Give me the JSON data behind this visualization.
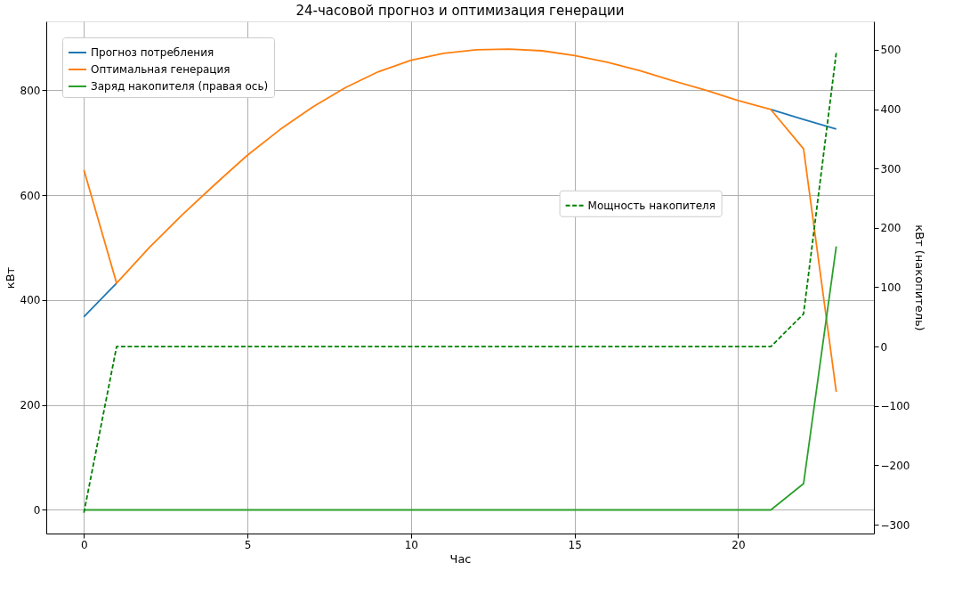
{
  "chart_data": {
    "type": "line",
    "title": "24-часовой прогноз и оптимизация генерации",
    "xlabel": "Час",
    "ylabel": "кВт",
    "y2label": "кВт (накопитель)",
    "x": [
      0,
      1,
      2,
      3,
      4,
      5,
      6,
      7,
      8,
      9,
      10,
      11,
      12,
      13,
      14,
      15,
      16,
      17,
      18,
      19,
      20,
      21,
      22,
      23
    ],
    "series": [
      {
        "name": "Прогноз потребления",
        "color": "#1f77b4",
        "values": [
          368,
          432,
          null,
          null,
          null,
          null,
          null,
          null,
          null,
          null,
          null,
          null,
          null,
          null,
          null,
          null,
          null,
          null,
          null,
          null,
          null,
          763,
          744,
          726
        ]
      },
      {
        "name": "Оптимальная генерация",
        "color": "#ff7f0e",
        "values": [
          648,
          432,
          500,
          562,
          620,
          676,
          725,
          768,
          805,
          835,
          857,
          870,
          877,
          878,
          875,
          866,
          853,
          837,
          818,
          800,
          780,
          763,
          688,
          225
        ]
      },
      {
        "name": "Заряд накопителя (правая ось)",
        "color": "#2ca02c",
        "values": [
          0,
          0,
          0,
          0,
          0,
          0,
          0,
          0,
          0,
          0,
          0,
          0,
          0,
          0,
          0,
          0,
          0,
          0,
          0,
          0,
          0,
          0,
          50,
          502
        ]
      },
      {
        "name": "Мощность накопителя",
        "color": "#008000",
        "axis": "y2",
        "line_style": "dashed",
        "values": [
          -280,
          0,
          0,
          0,
          0,
          0,
          0,
          0,
          0,
          0,
          0,
          0,
          0,
          0,
          0,
          0,
          0,
          0,
          0,
          0,
          0,
          0,
          55,
          495
        ]
      }
    ],
    "xlim": [
      -1.15,
      24.15
    ],
    "xticks": [
      0,
      5,
      10,
      15,
      20
    ],
    "ylim": [
      -45,
      931
    ],
    "yticks": [
      0,
      200,
      400,
      600,
      800
    ],
    "y2lim": [
      -315,
      548
    ],
    "y2ticks": [
      -300,
      -200,
      -100,
      0,
      100,
      200,
      300,
      400,
      500
    ],
    "grid": true,
    "legend": "top left",
    "line_style": "solid"
  }
}
